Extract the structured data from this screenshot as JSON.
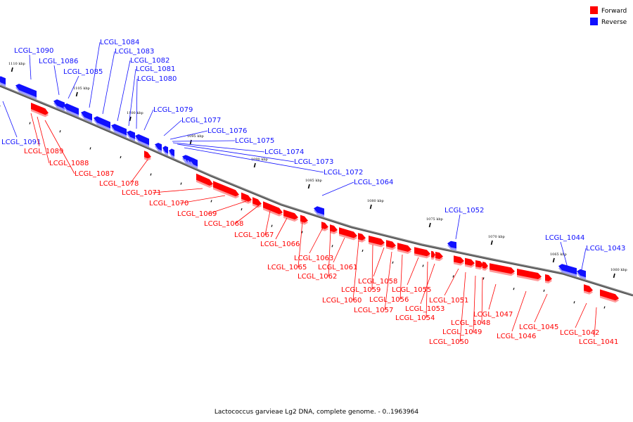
{
  "colors": {
    "forward": "#ff0000",
    "reverse": "#1010ff",
    "backbone": "#888888",
    "forward_shadow": "#ff9a9a",
    "reverse_shadow": "#9a9aff"
  },
  "legend": {
    "forward_label": "Forward",
    "reverse_label": "Reverse"
  },
  "caption": "Lactococcus garvieae Lg2 DNA, complete genome. - 0..1963964",
  "ticks": [
    "1110 kbp",
    "1105 kbp",
    "1100 kbp",
    "1095 kbp",
    "1090 kbp",
    "1085 kbp",
    "1080 kbp",
    "1075 kbp",
    "1070 kbp",
    "1065 kbp",
    "1060 kbp"
  ],
  "genes": [
    {
      "name": "LCGL_1091",
      "strand": "reverse"
    },
    {
      "name": "LCGL_1090",
      "strand": "reverse"
    },
    {
      "name": "LCGL_1089",
      "strand": "forward"
    },
    {
      "name": "LCGL_1088",
      "strand": "forward"
    },
    {
      "name": "LCGL_1087",
      "strand": "forward"
    },
    {
      "name": "LCGL_1086",
      "strand": "reverse"
    },
    {
      "name": "LCGL_1085",
      "strand": "reverse"
    },
    {
      "name": "LCGL_1084",
      "strand": "reverse"
    },
    {
      "name": "LCGL_1083",
      "strand": "reverse"
    },
    {
      "name": "LCGL_1082",
      "strand": "reverse"
    },
    {
      "name": "LCGL_1081",
      "strand": "reverse"
    },
    {
      "name": "LCGL_1080",
      "strand": "reverse"
    },
    {
      "name": "LCGL_1079",
      "strand": "reverse"
    },
    {
      "name": "LCGL_1078",
      "strand": "forward"
    },
    {
      "name": "LCGL_1077",
      "strand": "reverse"
    },
    {
      "name": "LCGL_1076",
      "strand": "reverse"
    },
    {
      "name": "LCGL_1075",
      "strand": "reverse"
    },
    {
      "name": "LCGL_1074",
      "strand": "reverse"
    },
    {
      "name": "LCGL_1073",
      "strand": "reverse"
    },
    {
      "name": "LCGL_1072",
      "strand": "reverse"
    },
    {
      "name": "LCGL_1071",
      "strand": "forward"
    },
    {
      "name": "LCGL_1070",
      "strand": "forward"
    },
    {
      "name": "LCGL_1069",
      "strand": "forward"
    },
    {
      "name": "LCGL_1068",
      "strand": "forward"
    },
    {
      "name": "LCGL_1067",
      "strand": "forward"
    },
    {
      "name": "LCGL_1066",
      "strand": "forward"
    },
    {
      "name": "LCGL_1064",
      "strand": "reverse"
    },
    {
      "name": "LCGL_1065",
      "strand": "forward"
    },
    {
      "name": "LCGL_1063",
      "strand": "forward"
    },
    {
      "name": "LCGL_1062",
      "strand": "forward"
    },
    {
      "name": "LCGL_1061",
      "strand": "forward"
    },
    {
      "name": "LCGL_1060",
      "strand": "forward"
    },
    {
      "name": "LCGL_1059",
      "strand": "forward"
    },
    {
      "name": "LCGL_1058",
      "strand": "forward"
    },
    {
      "name": "LCGL_1057",
      "strand": "forward"
    },
    {
      "name": "LCGL_1056",
      "strand": "forward"
    },
    {
      "name": "LCGL_1055",
      "strand": "forward"
    },
    {
      "name": "LCGL_1054",
      "strand": "forward"
    },
    {
      "name": "LCGL_1053",
      "strand": "forward"
    },
    {
      "name": "LCGL_1052",
      "strand": "reverse"
    },
    {
      "name": "LCGL_1051",
      "strand": "forward"
    },
    {
      "name": "LCGL_1050",
      "strand": "forward"
    },
    {
      "name": "LCGL_1049",
      "strand": "forward"
    },
    {
      "name": "LCGL_1048",
      "strand": "forward"
    },
    {
      "name": "LCGL_1047",
      "strand": "forward"
    },
    {
      "name": "LCGL_1046",
      "strand": "forward"
    },
    {
      "name": "LCGL_1045",
      "strand": "forward"
    },
    {
      "name": "LCGL_1044",
      "strand": "reverse"
    },
    {
      "name": "LCGL_1043",
      "strand": "reverse"
    },
    {
      "name": "LCGL_1042",
      "strand": "forward"
    },
    {
      "name": "LCGL_1041",
      "strand": "forward"
    }
  ]
}
